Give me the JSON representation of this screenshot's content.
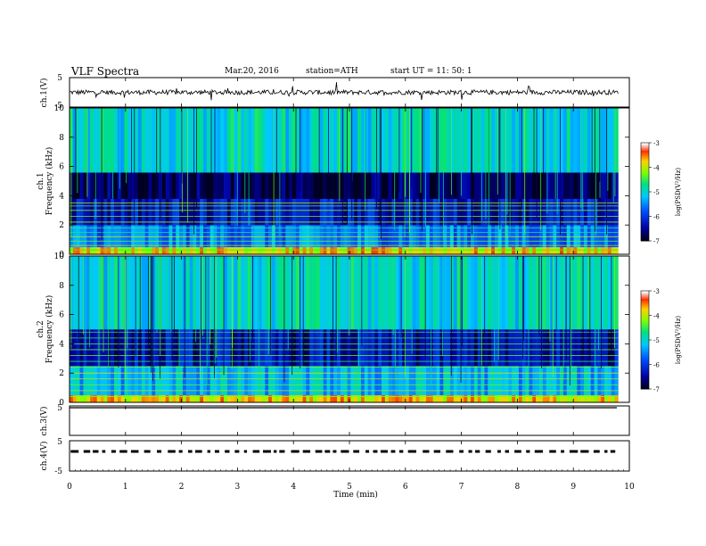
{
  "header": {
    "title": "VLF  Spectra",
    "date": "Mar.20, 2016",
    "station": "station=ATH",
    "start": "start  UT  =    11: 50: 1"
  },
  "chart_data": [
    {
      "type": "line",
      "panel": "ch1-waveform",
      "ylabel": "ch.1(V)",
      "yticks": [
        "5",
        "-5"
      ],
      "ylim": [
        -5,
        5
      ],
      "xlim": [
        0,
        10
      ],
      "baseline": 0,
      "amplitude": 0.8
    },
    {
      "type": "heatmap",
      "panel": "ch1-spectrogram",
      "ylabel_channel": "ch.1",
      "ylabel": "Frequency  (kHz)",
      "yticks": [
        "0",
        "2",
        "4",
        "6",
        "8",
        "10"
      ],
      "ylim": [
        0,
        10
      ],
      "xlim": [
        0,
        9.8
      ],
      "colorbar": {
        "label": "log(PSD(V²/Hz)",
        "ticks": [
          "-3",
          "-4",
          "-5",
          "-6",
          "-7"
        ],
        "range": [
          -7,
          -3
        ]
      },
      "bands": [
        {
          "from": 0,
          "to": 0.5,
          "level": -3.8
        },
        {
          "from": 0.5,
          "to": 2.0,
          "level": -5.6
        },
        {
          "from": 2.0,
          "to": 3.8,
          "level": -6.3
        },
        {
          "from": 3.8,
          "to": 5.6,
          "level": -6.8
        },
        {
          "from": 5.6,
          "to": 10,
          "level": -5.0
        }
      ],
      "lines_khz": [
        0.3,
        0.6,
        0.9,
        1.2,
        1.5,
        1.8,
        2.2,
        2.6,
        3.0,
        3.3,
        3.5
      ]
    },
    {
      "type": "heatmap",
      "panel": "ch2-spectrogram",
      "ylabel_channel": "ch.2",
      "ylabel": "Frequency  (kHz)",
      "yticks": [
        "0",
        "2",
        "4",
        "6",
        "8",
        "10"
      ],
      "ylim": [
        0,
        10
      ],
      "xlim": [
        0,
        9.8
      ],
      "colorbar": {
        "label": "log(PSD(V²/Hz)",
        "ticks": [
          "-3",
          "-4",
          "-5",
          "-6",
          "-7"
        ],
        "range": [
          -7,
          -3
        ]
      },
      "bands": [
        {
          "from": 0,
          "to": 0.5,
          "level": -3.8
        },
        {
          "from": 0.5,
          "to": 2.5,
          "level": -5.3
        },
        {
          "from": 2.5,
          "to": 5.0,
          "level": -6.4
        },
        {
          "from": 5.0,
          "to": 10,
          "level": -5.0
        }
      ],
      "lines_khz": [
        0.4,
        0.8,
        1.2,
        1.6,
        2.0,
        2.4,
        2.8,
        3.2,
        3.6,
        4.0,
        4.4,
        4.8
      ]
    },
    {
      "type": "line",
      "panel": "ch3-waveform",
      "ylabel": "ch.3(V)",
      "yticks": [
        "5"
      ],
      "ylim": [
        -5,
        5
      ],
      "xlim": [
        0,
        10
      ],
      "baseline": 5,
      "amplitude": 0
    },
    {
      "type": "line",
      "panel": "ch4-waveform",
      "ylabel": "ch.4(V)",
      "yticks": [
        "5",
        "-5"
      ],
      "ylim": [
        -5,
        5
      ],
      "xlim": [
        0,
        10
      ],
      "baseline": 0,
      "amplitude": 0.4
    }
  ],
  "xaxis": {
    "label": "Time  (min)",
    "ticks": [
      0,
      1,
      2,
      3,
      4,
      5,
      6,
      7,
      8,
      9,
      10
    ]
  }
}
